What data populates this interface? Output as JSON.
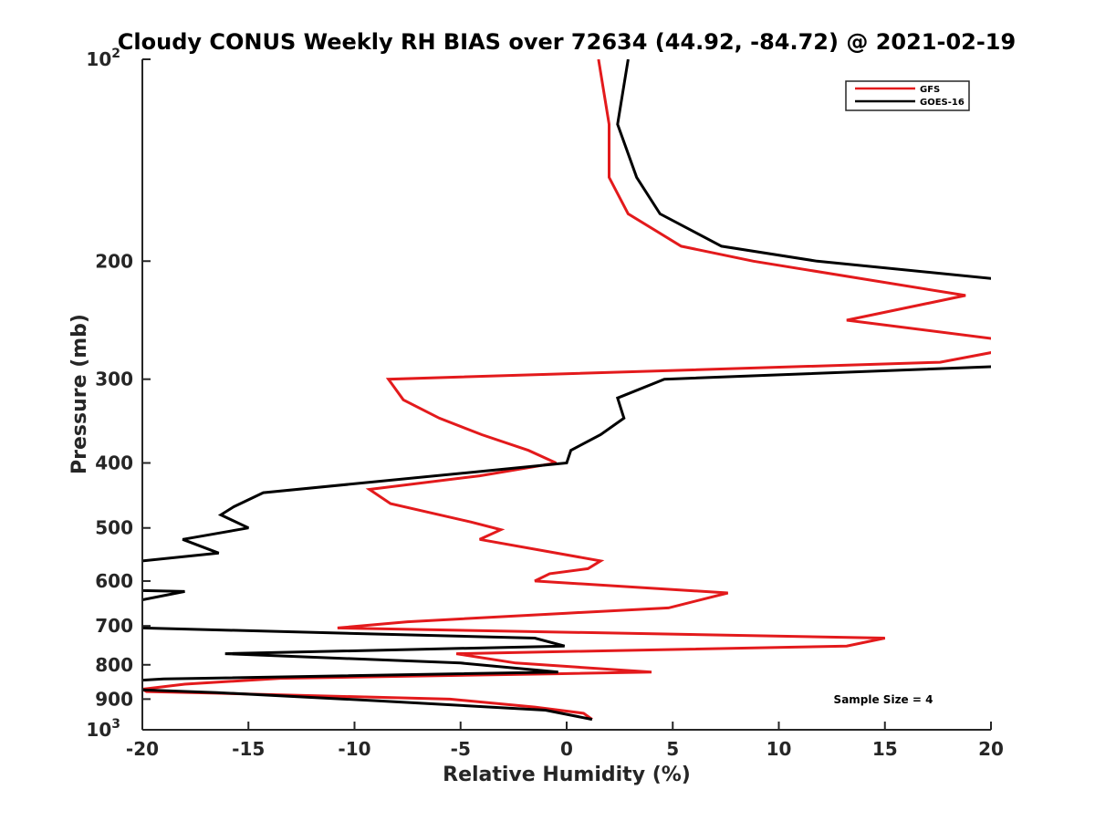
{
  "chart_data": {
    "type": "line",
    "title": "Cloudy CONUS Weekly RH BIAS over 72634 (44.92, -84.72) @ 2021-02-19",
    "xlabel": "Relative Humidity (%)",
    "ylabel": "Pressure (mb)",
    "xlim": [
      -20,
      20
    ],
    "ylim": [
      100,
      1000
    ],
    "y_scale": "log",
    "y_reversed": true,
    "grid": false,
    "legend_position": "top-right",
    "annotation": "Sample Size = 4",
    "x_ticks": [
      {
        "value": -20,
        "label": "-20"
      },
      {
        "value": -15,
        "label": "-15"
      },
      {
        "value": -10,
        "label": "-10"
      },
      {
        "value": -5,
        "label": "-5"
      },
      {
        "value": 0,
        "label": "0"
      },
      {
        "value": 5,
        "label": "5"
      },
      {
        "value": 10,
        "label": "10"
      },
      {
        "value": 15,
        "label": "15"
      },
      {
        "value": 20,
        "label": "20"
      }
    ],
    "y_ticks": [
      {
        "value": 100,
        "base": "10",
        "exp": "2"
      },
      {
        "value": 200,
        "base": "200",
        "exp": ""
      },
      {
        "value": 300,
        "base": "300",
        "exp": ""
      },
      {
        "value": 400,
        "base": "400",
        "exp": ""
      },
      {
        "value": 500,
        "base": "500",
        "exp": ""
      },
      {
        "value": 600,
        "base": "600",
        "exp": ""
      },
      {
        "value": 700,
        "base": "700",
        "exp": ""
      },
      {
        "value": 800,
        "base": "800",
        "exp": ""
      },
      {
        "value": 900,
        "base": "900",
        "exp": ""
      },
      {
        "value": 1000,
        "base": "10",
        "exp": "3"
      }
    ],
    "series": [
      {
        "name": "GFS",
        "color": "#e31a1c",
        "points": [
          [
            1.5,
            100
          ],
          [
            2.0,
            125
          ],
          [
            2.0,
            150
          ],
          [
            2.9,
            170
          ],
          [
            5.4,
            190
          ],
          [
            8.8,
            200
          ],
          [
            18.8,
            225
          ],
          [
            13.2,
            245
          ],
          [
            20.5,
            262
          ],
          [
            20.5,
            272
          ],
          [
            17.6,
            283
          ],
          [
            -8.4,
            300
          ],
          [
            -7.7,
            322
          ],
          [
            -6.0,
            343
          ],
          [
            -4.0,
            363
          ],
          [
            -1.8,
            383
          ],
          [
            -0.5,
            400
          ],
          [
            -4.1,
            418
          ],
          [
            -9.3,
            438
          ],
          [
            -8.3,
            460
          ],
          [
            -4.5,
            490
          ],
          [
            -3.1,
            503
          ],
          [
            -4.1,
            520
          ],
          [
            1.6,
            560
          ],
          [
            1.0,
            575
          ],
          [
            -0.8,
            585
          ],
          [
            -1.5,
            600
          ],
          [
            7.6,
            625
          ],
          [
            4.8,
            658
          ],
          [
            0.0,
            670
          ],
          [
            -7.5,
            690
          ],
          [
            -10.8,
            705
          ],
          [
            15.0,
            730
          ],
          [
            13.2,
            750
          ],
          [
            -5.2,
            770
          ],
          [
            -2.4,
            795
          ],
          [
            4.0,
            820
          ],
          [
            -0.5,
            825
          ],
          [
            -13.5,
            838
          ],
          [
            -18.0,
            855
          ],
          [
            -20.0,
            870
          ],
          [
            -19.8,
            877
          ],
          [
            -16.5,
            882
          ],
          [
            -5.5,
            900
          ],
          [
            -1.5,
            925
          ],
          [
            0.8,
            945
          ],
          [
            1.2,
            965
          ]
        ]
      },
      {
        "name": "GOES-16",
        "color": "#000000",
        "points": [
          [
            2.9,
            100
          ],
          [
            2.4,
            125
          ],
          [
            3.3,
            150
          ],
          [
            4.4,
            170
          ],
          [
            7.3,
            190
          ],
          [
            11.8,
            200
          ],
          [
            20.5,
            213
          ],
          [
            20.5,
            287
          ],
          [
            4.6,
            300
          ],
          [
            2.4,
            320
          ],
          [
            2.7,
            343
          ],
          [
            1.6,
            363
          ],
          [
            0.2,
            383
          ],
          [
            0.0,
            400
          ],
          [
            -14.3,
            443
          ],
          [
            -15.7,
            465
          ],
          [
            -16.3,
            478
          ],
          [
            -15.0,
            500
          ],
          [
            -18.1,
            520
          ],
          [
            -16.4,
            545
          ],
          [
            -20.0,
            560
          ],
          [
            -21.0,
            600
          ],
          [
            -20.0,
            620
          ],
          [
            -18.0,
            622
          ],
          [
            -20.0,
            640
          ],
          [
            -20.5,
            700
          ],
          [
            -20.0,
            705
          ],
          [
            -1.5,
            730
          ],
          [
            -0.1,
            750
          ],
          [
            -16.1,
            770
          ],
          [
            -5.0,
            795
          ],
          [
            -0.4,
            820
          ],
          [
            -19.0,
            840
          ],
          [
            -20.5,
            845
          ],
          [
            -20.5,
            863
          ],
          [
            -20.0,
            872
          ],
          [
            -16.5,
            880
          ],
          [
            -9.0,
            905
          ],
          [
            -1.0,
            935
          ],
          [
            1.2,
            965
          ]
        ]
      }
    ]
  }
}
